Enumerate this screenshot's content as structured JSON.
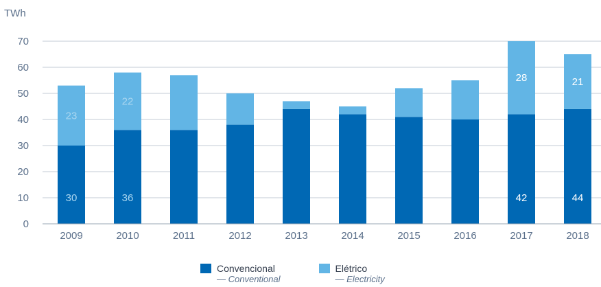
{
  "chart_data": {
    "type": "bar",
    "stacked": true,
    "unit_label": "TWh",
    "categories": [
      "2009",
      "2010",
      "2011",
      "2012",
      "2013",
      "2014",
      "2015",
      "2016",
      "2017",
      "2018"
    ],
    "series": [
      {
        "name": "Convencional",
        "name_secondary": "— Conventional",
        "color": "#0068b4",
        "values": [
          30,
          36,
          36,
          38,
          44,
          42,
          41,
          40,
          42,
          44
        ],
        "data_labels": [
          "30",
          "36",
          "",
          "",
          "",
          "",
          "",
          "",
          "42",
          "44"
        ]
      },
      {
        "name": "Elétrico",
        "name_secondary": "— Electricity",
        "color": "#62b5e5",
        "values": [
          23,
          22,
          21,
          12,
          3,
          3,
          11,
          15,
          28,
          21
        ],
        "data_labels": [
          "23",
          "22",
          "",
          "",
          "",
          "",
          "",
          "",
          "28",
          "21"
        ]
      }
    ],
    "ylim": [
      0,
      70
    ],
    "yticks": [
      0,
      10,
      20,
      30,
      40,
      50,
      60,
      70
    ],
    "grid": true,
    "legend_position": "bottom"
  },
  "colors": {
    "grid": "#c3cbd5",
    "tick_text": "#5a6f8a",
    "label_light": "#ffffff",
    "label_dim": "#a9d6f0"
  }
}
